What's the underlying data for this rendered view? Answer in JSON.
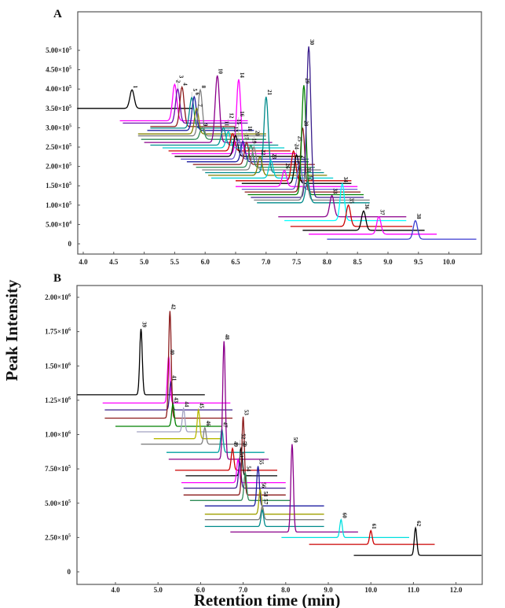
{
  "chart_data": [
    {
      "type": "line",
      "panel_label": "A",
      "xlim": [
        3.9,
        10.45
      ],
      "ylim": [
        0,
        560000.0
      ],
      "x_ticks": [
        "4.0",
        "4.5",
        "5.0",
        "5.5",
        "6.0",
        "6.5",
        "7.0",
        "7.5",
        "8.0",
        "8.5",
        "9.0",
        "9.5",
        "10.0"
      ],
      "y_ticks": [
        {
          "value": 0,
          "m": "0",
          "e": ""
        },
        {
          "value": 50000,
          "m": "5.00×10",
          "e": "4"
        },
        {
          "value": 100000,
          "m": "1.00×10",
          "e": "5"
        },
        {
          "value": 150000,
          "m": "1.50×10",
          "e": "5"
        },
        {
          "value": 200000,
          "m": "2.00×10",
          "e": "5"
        },
        {
          "value": 250000,
          "m": "2.50×10",
          "e": "5"
        },
        {
          "value": 300000,
          "m": "3.00×10",
          "e": "5"
        },
        {
          "value": 350000,
          "m": "3.50×10",
          "e": "5"
        },
        {
          "value": 400000,
          "m": "4.00×10",
          "e": "5"
        },
        {
          "value": 450000,
          "m": "4.50×10",
          "e": "5"
        },
        {
          "value": 500000,
          "m": "5.00×10",
          "e": "5"
        }
      ],
      "trace_fields": [
        "label",
        "rt",
        "baseline",
        "apex",
        "x_start",
        "x_end",
        "color"
      ],
      "traces": [
        [
          "1",
          4.8,
          350000,
          398000,
          3.9,
          5.8,
          "#000000"
        ],
        [
          "2",
          5.5,
          318000,
          412000,
          4.6,
          6.7,
          "#ff00ff"
        ],
        [
          "3",
          5.55,
          312000,
          400000,
          4.65,
          6.7,
          "#6a0dad"
        ],
        [
          "4",
          5.62,
          303000,
          405000,
          5.1,
          6.5,
          "#8b1a1a"
        ],
        [
          "5",
          5.78,
          299000,
          378000,
          5.1,
          6.5,
          "#008b8b"
        ],
        [
          "6",
          5.82,
          293000,
          380000,
          5.05,
          6.8,
          "#1e1ea0"
        ],
        [
          "7",
          5.86,
          284000,
          350000,
          4.9,
          7.0,
          "#808000"
        ],
        [
          "8",
          5.92,
          279000,
          398000,
          4.9,
          7.0,
          "#808080"
        ],
        [
          "9",
          5.95,
          270000,
          300000,
          4.95,
          7.0,
          "#2e8b57"
        ],
        [
          "10",
          6.2,
          262000,
          435000,
          5.0,
          7.1,
          "#8b008b"
        ],
        [
          "11",
          6.3,
          255000,
          300000,
          5.1,
          7.2,
          "#009090"
        ],
        [
          "12",
          6.38,
          248000,
          290000,
          5.3,
          7.3,
          "#00ced1"
        ],
        [
          "13",
          6.45,
          240000,
          285000,
          5.4,
          7.4,
          "#cc0000"
        ],
        [
          "14",
          6.55,
          233000,
          425000,
          5.45,
          7.5,
          "#ff00ff"
        ],
        [
          "15",
          6.5,
          226000,
          280000,
          5.5,
          7.6,
          "#000000"
        ],
        [
          "16",
          6.55,
          219000,
          270000,
          5.6,
          7.7,
          "#6a5acd"
        ],
        [
          "17",
          6.62,
          212000,
          265000,
          5.7,
          7.7,
          "#1e1ea0"
        ],
        [
          "18",
          6.68,
          205000,
          262000,
          5.8,
          7.8,
          "#8b1a1a"
        ],
        [
          "19",
          6.75,
          198000,
          255000,
          5.85,
          7.8,
          "#2e8b57"
        ],
        [
          "20",
          6.8,
          191000,
          250000,
          5.95,
          7.9,
          "#808080"
        ],
        [
          "21",
          7.0,
          184000,
          380000,
          6.0,
          7.95,
          "#008b8b"
        ],
        [
          "22",
          6.9,
          177000,
          225000,
          6.05,
          8.0,
          "#808000"
        ],
        [
          "23",
          7.08,
          170000,
          215000,
          6.1,
          8.1,
          "#00ced1"
        ],
        [
          "24",
          7.45,
          163000,
          240000,
          6.5,
          8.4,
          "#cc0000"
        ],
        [
          "25",
          7.5,
          156000,
          230000,
          6.6,
          8.4,
          "#000000"
        ],
        [
          "26",
          7.3,
          148000,
          190000,
          6.5,
          8.5,
          "#ff00ff"
        ],
        [
          "27",
          7.55,
          141000,
          210000,
          6.6,
          8.5,
          "#6a5acd"
        ],
        [
          "28",
          7.6,
          134000,
          300000,
          6.65,
          8.55,
          "#8b1a1a"
        ],
        [
          "29",
          7.62,
          127000,
          410000,
          6.7,
          8.6,
          "#008000"
        ],
        [
          "30",
          7.7,
          120000,
          510000,
          6.75,
          8.6,
          "#3a1e8c"
        ],
        [
          "31",
          7.65,
          113000,
          180000,
          6.8,
          8.7,
          "#808080"
        ],
        [
          "32",
          7.68,
          106000,
          160000,
          6.85,
          8.7,
          "#008b8b"
        ],
        [
          "33",
          8.08,
          70000,
          125000,
          7.2,
          9.3,
          "#8b008b"
        ],
        [
          "34",
          8.25,
          60000,
          155000,
          7.3,
          9.3,
          "#00ffff"
        ],
        [
          "35",
          8.35,
          45000,
          100000,
          7.4,
          9.4,
          "#cc0000"
        ],
        [
          "36",
          8.6,
          35000,
          85000,
          7.6,
          9.6,
          "#000000"
        ],
        [
          "37",
          8.85,
          25000,
          70000,
          7.7,
          9.8,
          "#ff00ff"
        ],
        [
          "38",
          9.45,
          12000,
          60000,
          8.0,
          10.45,
          "#3a3ad0"
        ]
      ]
    },
    {
      "type": "line",
      "panel_label": "B",
      "xlim": [
        3.1,
        12.6
      ],
      "ylim": [
        0,
        2100000.0
      ],
      "x_ticks": [
        "4.0",
        "5.0",
        "6.0",
        "7.0",
        "8.0",
        "9.0",
        "10.0",
        "11.0",
        "12.0"
      ],
      "y_ticks": [
        {
          "value": 0,
          "m": "0",
          "e": ""
        },
        {
          "value": 250000,
          "m": "2.50×10",
          "e": "5"
        },
        {
          "value": 500000,
          "m": "5.00×10",
          "e": "5"
        },
        {
          "value": 750000,
          "m": "7.50×10",
          "e": "5"
        },
        {
          "value": 1000000,
          "m": "1.00×10",
          "e": "6"
        },
        {
          "value": 1250000,
          "m": "1.25×10",
          "e": "6"
        },
        {
          "value": 1500000,
          "m": "1.50×10",
          "e": "6"
        },
        {
          "value": 1750000,
          "m": "1.75×10",
          "e": "6"
        },
        {
          "value": 2000000,
          "m": "2.00×10",
          "e": "6"
        }
      ],
      "trace_fields": [
        "label",
        "rt",
        "baseline",
        "apex",
        "x_start",
        "x_end",
        "color"
      ],
      "traces": [
        [
          "39",
          4.6,
          1290000,
          1770000,
          3.1,
          6.1,
          "#000000"
        ],
        [
          "40",
          5.25,
          1230000,
          1570000,
          3.7,
          6.7,
          "#ff00ff"
        ],
        [
          "41",
          5.3,
          1180000,
          1380000,
          3.75,
          6.75,
          "#3a1e8c"
        ],
        [
          "42",
          5.28,
          1120000,
          1900000,
          3.75,
          6.75,
          "#8b1a1a"
        ],
        [
          "43",
          5.35,
          1060000,
          1220000,
          4.0,
          6.5,
          "#008000"
        ],
        [
          "44",
          5.6,
          1020000,
          1190000,
          4.5,
          6.5,
          "#a0a0c0"
        ],
        [
          "45",
          5.95,
          970000,
          1180000,
          4.9,
          6.5,
          "#b8b800"
        ],
        [
          "46",
          6.1,
          930000,
          1050000,
          4.6,
          7.1,
          "#808080"
        ],
        [
          "47",
          6.5,
          870000,
          1040000,
          5.2,
          7.5,
          "#00a0a0"
        ],
        [
          "48",
          6.55,
          820000,
          1680000,
          5.25,
          7.6,
          "#8b008b"
        ],
        [
          "49",
          6.75,
          740000,
          900000,
          5.4,
          7.8,
          "#cc0000"
        ],
        [
          "50",
          6.95,
          700000,
          900000,
          5.65,
          7.8,
          "#000000"
        ],
        [
          "51",
          6.88,
          650000,
          820000,
          5.55,
          8.0,
          "#ff00ff"
        ],
        [
          "52",
          6.92,
          610000,
          800000,
          5.6,
          8.0,
          "#3a1e8c"
        ],
        [
          "53",
          7.0,
          560000,
          1130000,
          5.6,
          8.0,
          "#8b1a1a"
        ],
        [
          "54",
          7.05,
          520000,
          720000,
          5.75,
          8.1,
          "#2e8b57"
        ],
        [
          "55",
          7.35,
          480000,
          770000,
          6.1,
          8.9,
          "#1e1ea0"
        ],
        [
          "56",
          7.4,
          420000,
          600000,
          6.1,
          8.9,
          "#a0a000"
        ],
        [
          "57",
          7.45,
          380000,
          480000,
          6.1,
          8.9,
          "#808080"
        ],
        [
          "58",
          7.45,
          330000,
          450000,
          6.1,
          8.9,
          "#008b8b"
        ],
        [
          "59",
          8.15,
          290000,
          930000,
          6.7,
          9.7,
          "#8b008b"
        ],
        [
          "60",
          9.3,
          250000,
          380000,
          7.9,
          10.9,
          "#00e0e0"
        ],
        [
          "61",
          10.0,
          200000,
          300000,
          8.55,
          11.5,
          "#cc0000"
        ],
        [
          "62",
          11.05,
          120000,
          320000,
          9.6,
          12.6,
          "#000000"
        ]
      ]
    }
  ],
  "ylabel": "Peak Intensity",
  "xlabel": "Retention time (min)"
}
